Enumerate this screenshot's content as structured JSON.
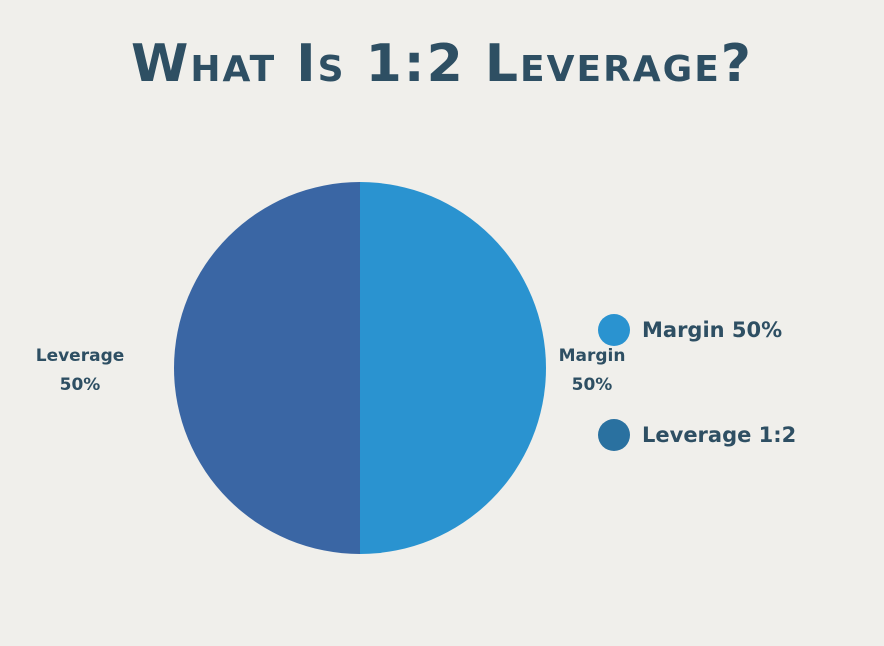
{
  "chart_data": {
    "type": "pie",
    "title": "What Is 1:2 Leverage?",
    "slices": [
      {
        "name": "Margin",
        "value": 50,
        "label_line1": "Margin",
        "label_line2": "50%",
        "color": "#2a93d0"
      },
      {
        "name": "Leverage",
        "value": 50,
        "label_line1": "Leverage",
        "label_line2": "50%",
        "color": "#3a66a4"
      }
    ],
    "legend": [
      {
        "label": "Margin 50%",
        "color": "#2a93d0"
      },
      {
        "label": "Leverage 1:2",
        "color": "#2a71a0"
      }
    ],
    "legend_position": "right"
  },
  "colors": {
    "background": "#f0efeb",
    "text": "#2e4f63"
  }
}
